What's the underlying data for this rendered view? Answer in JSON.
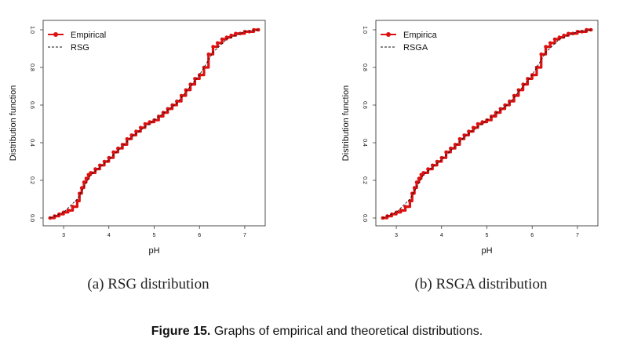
{
  "chart_data": [
    {
      "type": "line",
      "panel_label": "(a) RSG distribution",
      "xlabel": "pH",
      "ylabel": "Distribution function",
      "xlim": [
        2.6,
        7.4
      ],
      "ylim": [
        0,
        1
      ],
      "x_ticks": [
        "3",
        "4",
        "5",
        "6",
        "7"
      ],
      "y_ticks": [
        "0.0",
        "0.2",
        "0.4",
        "0.6",
        "0.8",
        "1.0"
      ],
      "legend": [
        "Empirical",
        "RSG"
      ],
      "legend_position": "top-left",
      "series": [
        {
          "name": "Empirical",
          "style": "red-points-with-steps",
          "x": [
            2.7,
            2.8,
            2.9,
            3.0,
            3.1,
            3.2,
            3.3,
            3.35,
            3.4,
            3.45,
            3.5,
            3.55,
            3.6,
            3.7,
            3.8,
            3.9,
            4.0,
            4.1,
            4.2,
            4.3,
            4.4,
            4.5,
            4.6,
            4.7,
            4.8,
            4.9,
            5.0,
            5.1,
            5.2,
            5.3,
            5.4,
            5.5,
            5.6,
            5.7,
            5.8,
            5.9,
            6.0,
            6.1,
            6.2,
            6.3,
            6.4,
            6.5,
            6.6,
            6.7,
            6.8,
            6.9,
            7.0,
            7.1,
            7.2,
            7.3
          ],
          "y": [
            0.0,
            0.01,
            0.02,
            0.03,
            0.04,
            0.06,
            0.09,
            0.13,
            0.16,
            0.19,
            0.21,
            0.23,
            0.24,
            0.26,
            0.28,
            0.3,
            0.32,
            0.35,
            0.37,
            0.39,
            0.42,
            0.44,
            0.46,
            0.48,
            0.5,
            0.51,
            0.52,
            0.54,
            0.56,
            0.58,
            0.6,
            0.62,
            0.65,
            0.68,
            0.71,
            0.74,
            0.76,
            0.8,
            0.87,
            0.91,
            0.93,
            0.95,
            0.96,
            0.97,
            0.98,
            0.98,
            0.99,
            0.99,
            1.0,
            1.0
          ]
        },
        {
          "name": "RSG",
          "style": "dashed-black",
          "x": [
            2.7,
            3.0,
            3.3,
            3.6,
            4.0,
            4.5,
            5.0,
            5.5,
            6.0,
            6.3,
            6.6,
            7.0,
            7.3
          ],
          "y": [
            0.0,
            0.03,
            0.1,
            0.23,
            0.31,
            0.43,
            0.52,
            0.61,
            0.76,
            0.88,
            0.95,
            0.99,
            1.0
          ]
        }
      ]
    },
    {
      "type": "line",
      "panel_label": "(b) RSGA distribution",
      "xlabel": "pH",
      "ylabel": "Distribution function",
      "xlim": [
        2.6,
        7.4
      ],
      "ylim": [
        0,
        1
      ],
      "x_ticks": [
        "3",
        "4",
        "5",
        "6",
        "7"
      ],
      "y_ticks": [
        "0.0",
        "0.2",
        "0.4",
        "0.6",
        "0.8",
        "1.0"
      ],
      "legend": [
        "Empirica",
        "RSGA"
      ],
      "legend_position": "top-left",
      "series": [
        {
          "name": "Empirica",
          "style": "red-points-with-steps",
          "x": [
            2.7,
            2.8,
            2.9,
            3.0,
            3.1,
            3.2,
            3.3,
            3.35,
            3.4,
            3.45,
            3.5,
            3.55,
            3.6,
            3.7,
            3.8,
            3.9,
            4.0,
            4.1,
            4.2,
            4.3,
            4.4,
            4.5,
            4.6,
            4.7,
            4.8,
            4.9,
            5.0,
            5.1,
            5.2,
            5.3,
            5.4,
            5.5,
            5.6,
            5.7,
            5.8,
            5.9,
            6.0,
            6.1,
            6.2,
            6.3,
            6.4,
            6.5,
            6.6,
            6.7,
            6.8,
            6.9,
            7.0,
            7.1,
            7.2,
            7.3
          ],
          "y": [
            0.0,
            0.01,
            0.02,
            0.03,
            0.04,
            0.06,
            0.09,
            0.13,
            0.16,
            0.19,
            0.21,
            0.23,
            0.24,
            0.26,
            0.28,
            0.3,
            0.32,
            0.35,
            0.37,
            0.39,
            0.42,
            0.44,
            0.46,
            0.48,
            0.5,
            0.51,
            0.52,
            0.54,
            0.56,
            0.58,
            0.6,
            0.62,
            0.65,
            0.68,
            0.71,
            0.74,
            0.76,
            0.8,
            0.87,
            0.91,
            0.93,
            0.95,
            0.96,
            0.97,
            0.98,
            0.98,
            0.99,
            0.99,
            1.0,
            1.0
          ]
        },
        {
          "name": "RSGA",
          "style": "dashed-black",
          "x": [
            2.7,
            3.0,
            3.3,
            3.6,
            4.0,
            4.5,
            5.0,
            5.5,
            6.0,
            6.3,
            6.6,
            7.0,
            7.3
          ],
          "y": [
            0.0,
            0.03,
            0.1,
            0.23,
            0.31,
            0.43,
            0.52,
            0.61,
            0.76,
            0.88,
            0.95,
            0.99,
            1.0
          ]
        }
      ]
    }
  ],
  "caption": {
    "label": "Figure 15.",
    "text": "Graphs of empirical and theoretical distributions."
  },
  "colors": {
    "empirical": "#dd1111",
    "theoretical": "#111111"
  }
}
